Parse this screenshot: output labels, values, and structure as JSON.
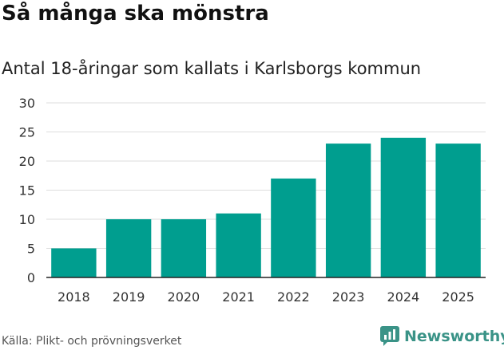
{
  "title": "Så många ska mönstra",
  "subtitle": "Antal 18-åringar som kallats i Karlsborgs kommun",
  "source": "Källa: Plikt- och prövningsverket",
  "logo_text": "Newsworthy",
  "colors": {
    "bar": "#009e8f",
    "grid": "#dddddd",
    "axis": "#222222",
    "brand": "#3a9387"
  },
  "chart_data": {
    "type": "bar",
    "title": "Så många ska mönstra",
    "subtitle": "Antal 18-åringar som kallats i Karlsborgs kommun",
    "xlabel": "",
    "ylabel": "",
    "categories": [
      "2018",
      "2019",
      "2020",
      "2021",
      "2022",
      "2023",
      "2024",
      "2025"
    ],
    "values": [
      5,
      10,
      10,
      11,
      17,
      23,
      24,
      23
    ],
    "ylim": [
      0,
      30
    ],
    "yticks": [
      0,
      5,
      10,
      15,
      20,
      25,
      30
    ],
    "grid": true
  }
}
